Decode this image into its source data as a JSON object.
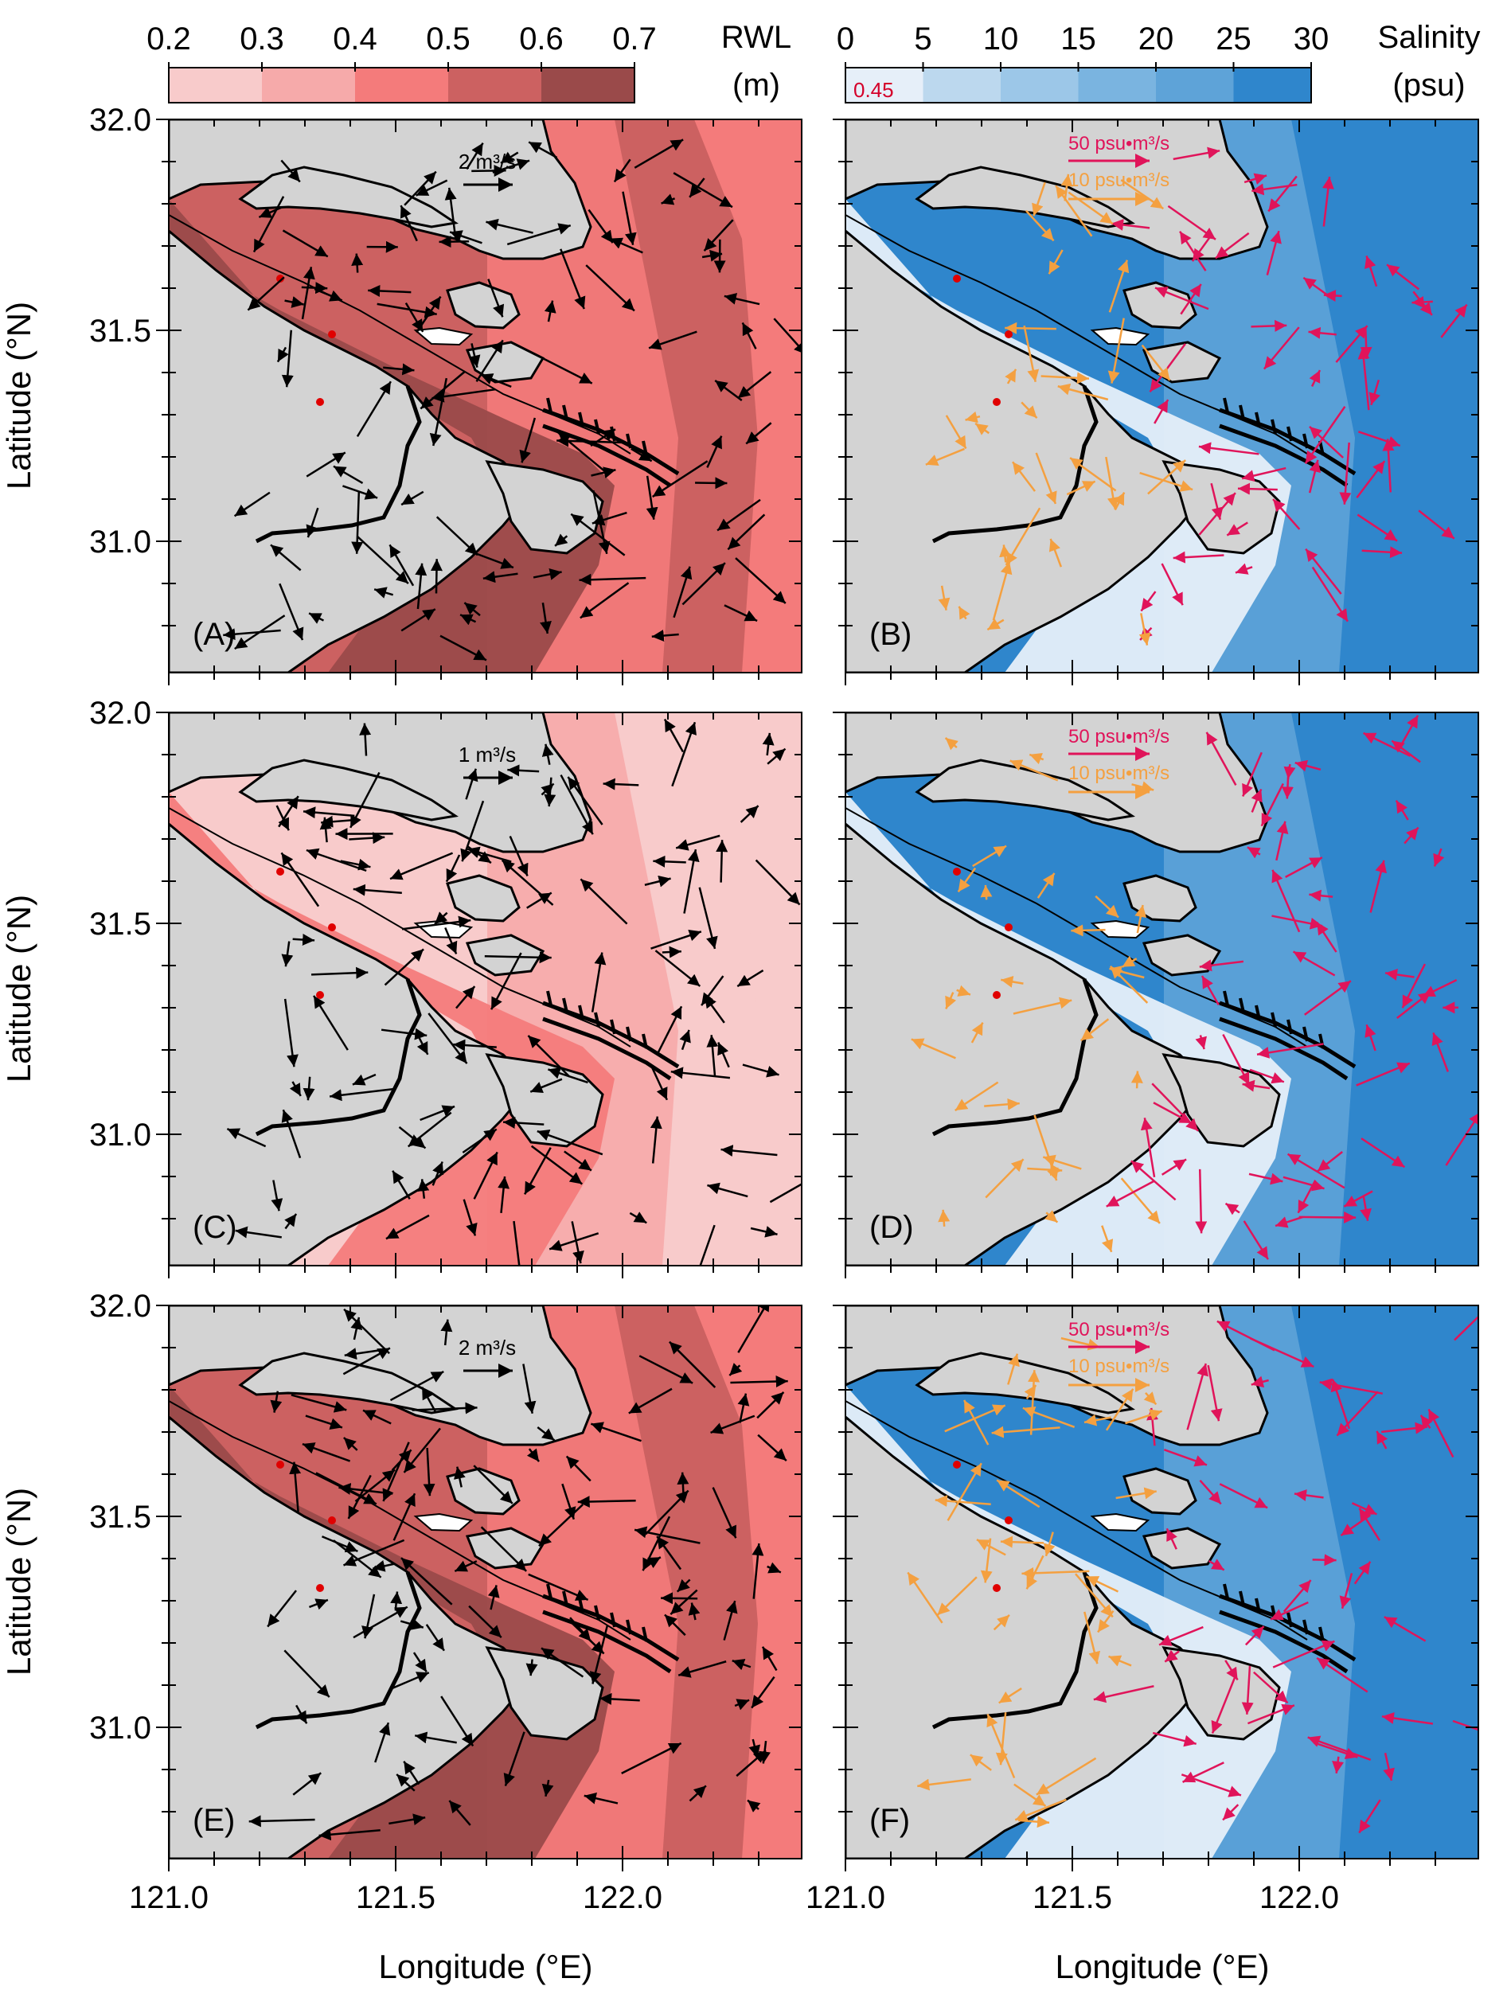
{
  "colorbars": {
    "rwl": {
      "title_line1": "RWL",
      "title_line2": "(m)",
      "ticks": [
        "0.2",
        "0.3",
        "0.4",
        "0.5",
        "0.6",
        "0.7"
      ],
      "colors": [
        "#f8cbcb",
        "#f6aaaa",
        "#f47b7b",
        "#cc6161",
        "#9a4a4a"
      ]
    },
    "salinity": {
      "title_line1": "Salinity",
      "title_line2": "(psu)",
      "ticks": [
        "0",
        "5",
        "10",
        "15",
        "20",
        "25",
        "30"
      ],
      "colors": [
        "#e6eff9",
        "#bcd8ee",
        "#9cc7e8",
        "#7ab4e0",
        "#5ea3d8",
        "#2f86cc"
      ],
      "first_bin_label": "0.45",
      "first_bin_label_color": "#d4002a"
    }
  },
  "axes": {
    "xlabel": "Longitude (°E)",
    "ylabel": "Latitude (°N)",
    "x_ticks": [
      "121.0",
      "121.5",
      "122.0"
    ],
    "y_ticks": [
      "32.0",
      "31.5",
      "31.0"
    ]
  },
  "colors": {
    "land": "#d3d3d3",
    "ocean_red_mid": "#cc6161",
    "ocean_red_dark": "#9a4a4a",
    "ocean_red_light": "#f47b7b",
    "ocean_pink": "#f8cbcb",
    "ocean_pink2": "#f6aaaa",
    "sal_high": "#2f86cc",
    "sal_mid": "#5ea3d8",
    "sal_low": "#9cc7e8",
    "sal_fresh": "#e6eff9",
    "arrow_black": "#000000",
    "arrow_magenta": "#e0145a",
    "arrow_orange": "#f4a040",
    "station_red": "#e00000"
  },
  "panels": [
    {
      "label": "(A)",
      "kind": "rwl",
      "scale_label": "2 m³/s",
      "shade": "mid"
    },
    {
      "label": "(B)",
      "kind": "sal",
      "scale_label_1": "50 psu•m³/s",
      "scale_label_2": "10 psu•m³/s"
    },
    {
      "label": "(C)",
      "kind": "rwl",
      "scale_label": "1 m³/s",
      "shade": "light"
    },
    {
      "label": "(D)",
      "kind": "sal",
      "scale_label_1": "50 psu•m³/s",
      "scale_label_2": "10 psu•m³/s"
    },
    {
      "label": "(E)",
      "kind": "rwl",
      "scale_label": "2 m³/s",
      "shade": "mid"
    },
    {
      "label": "(F)",
      "kind": "sal",
      "scale_label_1": "50 psu•m³/s",
      "scale_label_2": "10 psu•m³/s"
    }
  ]
}
